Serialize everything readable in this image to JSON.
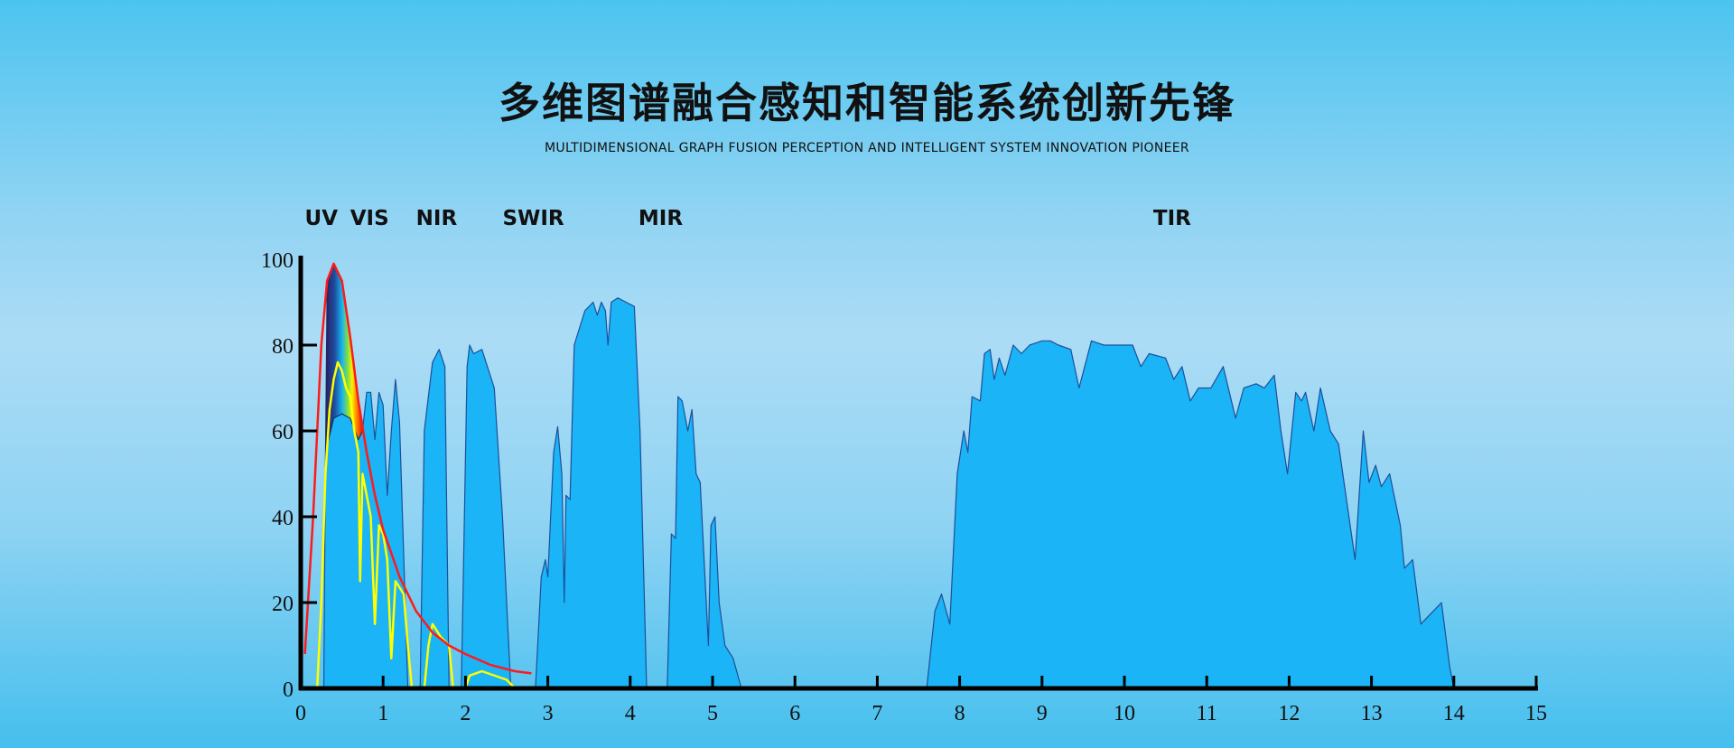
{
  "header": {
    "title": "多维图谱融合感知和智能系统创新先锋",
    "subtitle": "MULTIDIMENSIONAL GRAPH FUSION PERCEPTION AND INTELLIGENT SYSTEM INNOVATION PIONEER"
  },
  "chart_data": {
    "type": "area",
    "xlim": [
      0,
      15
    ],
    "ylim": [
      0,
      100
    ],
    "x_ticks": [
      "0",
      "1",
      "2",
      "3",
      "4",
      "5",
      "6",
      "7",
      "8",
      "9",
      "10",
      "11",
      "12",
      "13",
      "14",
      "15"
    ],
    "y_ticks": [
      "0",
      "20",
      "40",
      "60",
      "80",
      "100"
    ],
    "grid": false,
    "band_labels": [
      {
        "label": "UV",
        "x": 0.05
      },
      {
        "label": "VIS",
        "x": 0.6
      },
      {
        "label": "NIR",
        "x": 1.4
      },
      {
        "label": "SWIR",
        "x": 2.45
      },
      {
        "label": "MIR",
        "x": 4.1
      },
      {
        "label": "TIR",
        "x": 10.35
      }
    ],
    "colors": {
      "transmission_fill": "#1ab4f7",
      "transmission_edge": "#1e4f9a",
      "blackbody": "#ff1a1a",
      "solar": "#ffff00"
    },
    "series": [
      {
        "kind": "transmission",
        "points": [
          [
            0.28,
            0
          ],
          [
            0.3,
            55
          ],
          [
            0.4,
            63
          ],
          [
            0.5,
            64
          ],
          [
            0.6,
            63
          ],
          [
            0.7,
            58
          ],
          [
            0.75,
            60
          ],
          [
            0.8,
            69
          ],
          [
            0.85,
            69
          ],
          [
            0.9,
            58
          ],
          [
            0.95,
            69
          ],
          [
            1.0,
            66
          ],
          [
            1.05,
            45
          ],
          [
            1.1,
            60
          ],
          [
            1.15,
            72
          ],
          [
            1.2,
            62
          ],
          [
            1.3,
            0
          ],
          [
            1.45,
            0
          ],
          [
            1.5,
            60
          ],
          [
            1.6,
            76
          ],
          [
            1.68,
            79
          ],
          [
            1.75,
            75
          ],
          [
            1.8,
            0
          ],
          [
            1.95,
            0
          ],
          [
            2.02,
            75
          ],
          [
            2.05,
            80
          ],
          [
            2.1,
            78
          ],
          [
            2.2,
            79
          ],
          [
            2.35,
            70
          ],
          [
            2.45,
            40
          ],
          [
            2.55,
            0
          ],
          [
            2.85,
            0
          ],
          [
            2.92,
            26
          ],
          [
            2.97,
            30
          ],
          [
            3.0,
            26
          ],
          [
            3.07,
            55
          ],
          [
            3.12,
            61
          ],
          [
            3.17,
            50
          ],
          [
            3.2,
            20
          ],
          [
            3.22,
            45
          ],
          [
            3.27,
            44
          ],
          [
            3.32,
            80
          ],
          [
            3.45,
            88
          ],
          [
            3.55,
            90
          ],
          [
            3.6,
            87
          ],
          [
            3.65,
            90
          ],
          [
            3.7,
            88
          ],
          [
            3.73,
            80
          ],
          [
            3.77,
            90
          ],
          [
            3.85,
            91
          ],
          [
            3.95,
            90
          ],
          [
            4.05,
            89
          ],
          [
            4.12,
            60
          ],
          [
            4.2,
            0
          ],
          [
            4.45,
            0
          ],
          [
            4.5,
            36
          ],
          [
            4.55,
            35
          ],
          [
            4.58,
            68
          ],
          [
            4.63,
            67
          ],
          [
            4.7,
            60
          ],
          [
            4.75,
            65
          ],
          [
            4.8,
            50
          ],
          [
            4.85,
            48
          ],
          [
            4.95,
            10
          ],
          [
            4.98,
            38
          ],
          [
            5.03,
            40
          ],
          [
            5.08,
            20
          ],
          [
            5.15,
            10
          ],
          [
            5.25,
            7
          ],
          [
            5.35,
            0
          ],
          [
            7.6,
            0
          ],
          [
            7.7,
            18
          ],
          [
            7.78,
            22
          ],
          [
            7.88,
            15
          ],
          [
            7.97,
            50
          ],
          [
            8.05,
            60
          ],
          [
            8.1,
            55
          ],
          [
            8.15,
            68
          ],
          [
            8.25,
            67
          ],
          [
            8.3,
            78
          ],
          [
            8.37,
            79
          ],
          [
            8.42,
            72
          ],
          [
            8.48,
            77
          ],
          [
            8.55,
            73
          ],
          [
            8.65,
            80
          ],
          [
            8.75,
            78
          ],
          [
            8.85,
            80
          ],
          [
            9.0,
            81
          ],
          [
            9.1,
            81
          ],
          [
            9.2,
            80
          ],
          [
            9.35,
            79
          ],
          [
            9.45,
            70
          ],
          [
            9.6,
            81
          ],
          [
            9.75,
            80
          ],
          [
            9.9,
            80
          ],
          [
            10.1,
            80
          ],
          [
            10.2,
            75
          ],
          [
            10.3,
            78
          ],
          [
            10.5,
            77
          ],
          [
            10.6,
            72
          ],
          [
            10.7,
            75
          ],
          [
            10.8,
            67
          ],
          [
            10.9,
            70
          ],
          [
            11.05,
            70
          ],
          [
            11.2,
            75
          ],
          [
            11.35,
            63
          ],
          [
            11.45,
            70
          ],
          [
            11.6,
            71
          ],
          [
            11.7,
            70
          ],
          [
            11.82,
            73
          ],
          [
            11.9,
            60
          ],
          [
            11.98,
            50
          ],
          [
            12.08,
            69
          ],
          [
            12.15,
            67
          ],
          [
            12.2,
            69
          ],
          [
            12.3,
            60
          ],
          [
            12.38,
            70
          ],
          [
            12.5,
            60
          ],
          [
            12.6,
            57
          ],
          [
            12.8,
            30
          ],
          [
            12.9,
            60
          ],
          [
            12.97,
            48
          ],
          [
            13.05,
            52
          ],
          [
            13.12,
            47
          ],
          [
            13.22,
            50
          ],
          [
            13.35,
            38
          ],
          [
            13.4,
            28
          ],
          [
            13.5,
            30
          ],
          [
            13.6,
            15
          ],
          [
            13.7,
            17
          ],
          [
            13.85,
            20
          ],
          [
            13.95,
            5
          ],
          [
            14.0,
            0
          ]
        ]
      },
      {
        "kind": "blackbody",
        "points": [
          [
            0.05,
            8
          ],
          [
            0.15,
            40
          ],
          [
            0.25,
            80
          ],
          [
            0.32,
            95
          ],
          [
            0.4,
            99
          ],
          [
            0.5,
            95
          ],
          [
            0.6,
            82
          ],
          [
            0.7,
            67
          ],
          [
            0.8,
            55
          ],
          [
            0.9,
            45
          ],
          [
            1.0,
            37
          ],
          [
            1.2,
            26
          ],
          [
            1.4,
            18
          ],
          [
            1.6,
            13
          ],
          [
            1.8,
            10
          ],
          [
            2.0,
            8
          ],
          [
            2.3,
            5.5
          ],
          [
            2.6,
            4
          ],
          [
            2.8,
            3.5
          ]
        ]
      },
      {
        "kind": "solar",
        "points": [
          [
            0.2,
            0
          ],
          [
            0.25,
            20
          ],
          [
            0.3,
            50
          ],
          [
            0.35,
            65
          ],
          [
            0.4,
            72
          ],
          [
            0.45,
            76
          ],
          [
            0.5,
            74
          ],
          [
            0.55,
            70
          ],
          [
            0.6,
            68
          ],
          [
            0.65,
            60
          ],
          [
            0.7,
            55
          ],
          [
            0.72,
            25
          ],
          [
            0.75,
            50
          ],
          [
            0.8,
            45
          ],
          [
            0.85,
            40
          ],
          [
            0.9,
            15
          ],
          [
            0.95,
            38
          ],
          [
            1.0,
            36
          ],
          [
            1.05,
            30
          ],
          [
            1.1,
            7
          ],
          [
            1.15,
            25
          ],
          [
            1.25,
            22
          ],
          [
            1.3,
            10
          ],
          [
            1.35,
            0
          ],
          [
            1.5,
            0
          ],
          [
            1.55,
            10
          ],
          [
            1.6,
            15
          ],
          [
            1.7,
            12
          ],
          [
            1.8,
            10
          ],
          [
            1.85,
            0
          ],
          [
            2.0,
            0
          ],
          [
            2.05,
            3
          ],
          [
            2.2,
            4
          ],
          [
            2.5,
            2
          ],
          [
            2.6,
            0
          ]
        ]
      }
    ]
  }
}
